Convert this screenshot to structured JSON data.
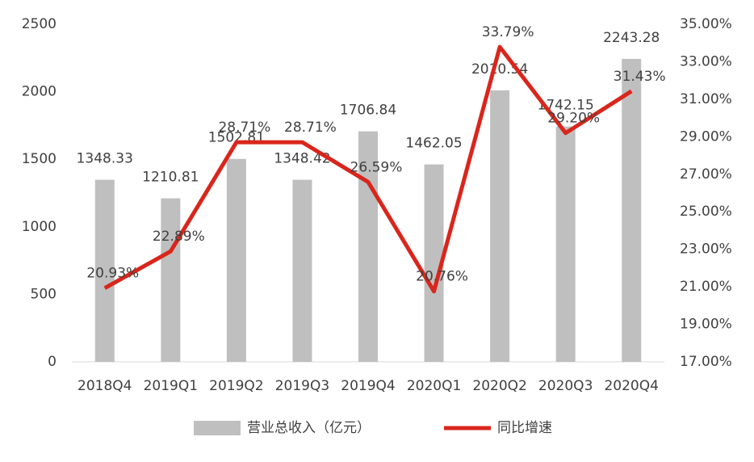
{
  "chart_data": {
    "type": "bar",
    "categories": [
      "2018Q4",
      "2019Q1",
      "2019Q2",
      "2019Q3",
      "2019Q4",
      "2020Q1",
      "2020Q2",
      "2020Q3",
      "2020Q4"
    ],
    "series": [
      {
        "name": "营业总收入（亿元）",
        "type": "bar",
        "color": "#bfbfbf",
        "values": [
          1348.33,
          1210.81,
          1502.81,
          1348.42,
          1706.84,
          1462.05,
          2010.54,
          1742.15,
          2243.28
        ]
      },
      {
        "name": "同比增速",
        "type": "line",
        "axis": "y2",
        "color": "#d9261c",
        "values": [
          20.93,
          22.89,
          28.71,
          28.71,
          26.59,
          20.76,
          33.79,
          29.2,
          31.43
        ],
        "value_labels": [
          "20.93%",
          "22.89%",
          "28.71%",
          "28.71%",
          "26.59%",
          "20.76%",
          "33.79%",
          "29.20%",
          "31.43%"
        ]
      }
    ],
    "ylim": [
      0,
      2500
    ],
    "yticks": [
      0,
      500,
      1000,
      1500,
      2000,
      2500
    ],
    "y2lim": [
      17,
      35
    ],
    "y2ticks": [
      {
        "value": 17,
        "label": "17.00%"
      },
      {
        "value": 19,
        "label": "19.00%"
      },
      {
        "value": 21,
        "label": "21.00%"
      },
      {
        "value": 23,
        "label": "23.00%"
      },
      {
        "value": 25,
        "label": "25.00%"
      },
      {
        "value": 27,
        "label": "27.00%"
      },
      {
        "value": 29,
        "label": "29.00%"
      },
      {
        "value": 31,
        "label": "31.00%"
      },
      {
        "value": 33,
        "label": "33.00%"
      },
      {
        "value": 35,
        "label": "35.00%"
      }
    ],
    "legend": "bottom"
  }
}
